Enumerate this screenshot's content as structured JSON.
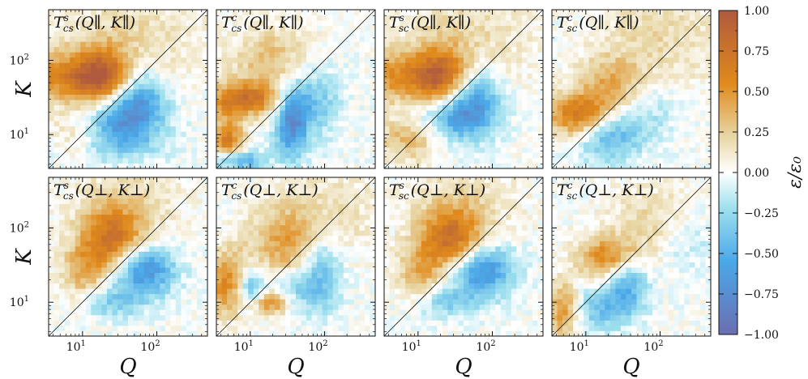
{
  "chart_data": {
    "type": "heatmap",
    "layout": "2x4 grid of panels with shared colorbar on the right",
    "x_axis": {
      "label": "Q",
      "scale": "log",
      "range": [
        3.5,
        480
      ],
      "major_ticks": [
        10,
        100
      ],
      "tick_labels": [
        "10",
        "10"
      ],
      "tick_exponents": [
        "1",
        "2"
      ]
    },
    "y_axis": {
      "label": "K",
      "scale": "log",
      "range": [
        3.5,
        480
      ],
      "major_ticks": [
        10,
        100
      ],
      "tick_labels": [
        "10",
        "10"
      ],
      "tick_exponents": [
        "1",
        "2"
      ]
    },
    "diagonal_line": "K = Q",
    "colorbar": {
      "label": "ε/ε₀",
      "range": [
        -1.0,
        1.0
      ],
      "ticks": [
        "1.00",
        "0.75",
        "0.50",
        "0.25",
        "0.00",
        "−0.25",
        "−0.50",
        "−0.75",
        "−1.00"
      ],
      "colors": {
        "neg_end": "#6b6eb0",
        "neg_mid": "#4aa8e8",
        "neg_light": "#9fe0ee",
        "zero": "#ffffff",
        "pos_light": "#e8d7a6",
        "pos_mid": "#e08a1c",
        "pos_end": "#b05a3e"
      }
    },
    "panels": [
      {
        "id": "p1",
        "row": 0,
        "col": 0,
        "title_main": "T",
        "title_sup": "s",
        "title_sub": "cs",
        "title_args": "(Q∥, K∥)",
        "blobs": [
          {
            "q": 6,
            "k": 60,
            "amp": 0.55,
            "sq": 0.6,
            "sk": 0.25
          },
          {
            "q": 18,
            "k": 55,
            "amp": 0.65,
            "sq": 0.25,
            "sk": 0.3
          },
          {
            "q": 45,
            "k": 200,
            "amp": 0.2,
            "sq": 0.6,
            "sk": 0.5
          },
          {
            "q": 8,
            "k": 9,
            "amp": 0.45,
            "sq": 0.3,
            "sk": 0.2
          },
          {
            "q": 30,
            "k": 18,
            "amp": -0.6,
            "sq": 0.35,
            "sk": 0.25
          },
          {
            "q": 60,
            "k": 35,
            "amp": -0.5,
            "sq": 0.25,
            "sk": 0.3
          },
          {
            "q": 15,
            "k": 8,
            "amp": -0.35,
            "sq": 0.6,
            "sk": 0.2
          }
        ]
      },
      {
        "id": "p2",
        "row": 0,
        "col": 1,
        "title_main": "T",
        "title_sup": "c",
        "title_sub": "cs",
        "title_args": "(Q∥, K∥)",
        "blobs": [
          {
            "q": 8,
            "k": 30,
            "amp": 0.7,
            "sq": 0.35,
            "sk": 0.15
          },
          {
            "q": 5,
            "k": 8,
            "amp": 0.65,
            "sq": 0.15,
            "sk": 0.25
          },
          {
            "q": 20,
            "k": 90,
            "amp": 0.35,
            "sq": 0.4,
            "sk": 0.35
          },
          {
            "q": 35,
            "k": 15,
            "amp": -0.7,
            "sq": 0.15,
            "sk": 0.35
          },
          {
            "q": 70,
            "k": 30,
            "amp": -0.4,
            "sq": 0.25,
            "sk": 0.35
          },
          {
            "q": 6,
            "k": 4.5,
            "amp": -0.7,
            "sq": 0.25,
            "sk": 0.1
          }
        ]
      },
      {
        "id": "p3",
        "row": 0,
        "col": 2,
        "title_main": "T",
        "title_sup": "s",
        "title_sub": "sc",
        "title_args": "(Q∥, K∥)",
        "blobs": [
          {
            "q": 6,
            "k": 60,
            "amp": 0.5,
            "sq": 0.6,
            "sk": 0.25
          },
          {
            "q": 20,
            "k": 55,
            "amp": 0.6,
            "sq": 0.25,
            "sk": 0.3
          },
          {
            "q": 45,
            "k": 200,
            "amp": 0.2,
            "sq": 0.6,
            "sk": 0.5
          },
          {
            "q": 8,
            "k": 9,
            "amp": 0.4,
            "sq": 0.3,
            "sk": 0.2
          },
          {
            "q": 30,
            "k": 18,
            "amp": -0.6,
            "sq": 0.35,
            "sk": 0.25
          },
          {
            "q": 60,
            "k": 35,
            "amp": -0.5,
            "sq": 0.25,
            "sk": 0.3
          }
        ]
      },
      {
        "id": "p4",
        "row": 0,
        "col": 3,
        "title_main": "T",
        "title_sup": "c",
        "title_sub": "sc",
        "title_args": "(Q∥, K∥)",
        "blobs": [
          {
            "q": 8,
            "k": 18,
            "amp": 0.7,
            "sq": 0.3,
            "sk": 0.2
          },
          {
            "q": 25,
            "k": 40,
            "amp": 0.45,
            "sq": 0.35,
            "sk": 0.3
          },
          {
            "q": 100,
            "k": 200,
            "amp": 0.2,
            "sq": 0.6,
            "sk": 0.5
          },
          {
            "q": 20,
            "k": 10,
            "amp": -0.5,
            "sq": 0.3,
            "sk": 0.25
          },
          {
            "q": 60,
            "k": 25,
            "amp": -0.3,
            "sq": 0.3,
            "sk": 0.3
          }
        ]
      },
      {
        "id": "p5",
        "row": 1,
        "col": 0,
        "title_main": "T",
        "title_sup": "s",
        "title_sub": "cs",
        "title_args": "(Q⊥, K⊥)",
        "blobs": [
          {
            "q": 25,
            "k": 65,
            "amp": 0.75,
            "sq": 0.3,
            "sk": 0.3
          },
          {
            "q": 10,
            "k": 25,
            "amp": 0.35,
            "sq": 0.2,
            "sk": 0.25
          },
          {
            "q": 40,
            "k": 200,
            "amp": 0.2,
            "sq": 0.5,
            "sk": 0.4
          },
          {
            "q": 65,
            "k": 28,
            "amp": -0.75,
            "sq": 0.3,
            "sk": 0.25
          },
          {
            "q": 25,
            "k": 10,
            "amp": -0.3,
            "sq": 0.3,
            "sk": 0.15
          }
        ]
      },
      {
        "id": "p6",
        "row": 1,
        "col": 1,
        "title_main": "T",
        "title_sup": "c",
        "title_sub": "cs",
        "title_args": "(Q⊥, K⊥)",
        "blobs": [
          {
            "q": 5,
            "k": 18,
            "amp": 0.6,
            "sq": 0.2,
            "sk": 0.3
          },
          {
            "q": 18,
            "k": 10,
            "amp": 0.6,
            "sq": 0.2,
            "sk": 0.12
          },
          {
            "q": 30,
            "k": 60,
            "amp": 0.4,
            "sq": 0.35,
            "sk": 0.35
          },
          {
            "q": 100,
            "k": 150,
            "amp": 0.2,
            "sq": 0.5,
            "sk": 0.4
          },
          {
            "q": 10,
            "k": 15,
            "amp": -0.55,
            "sq": 0.15,
            "sk": 0.2
          },
          {
            "q": 90,
            "k": 30,
            "amp": -0.4,
            "sq": 0.2,
            "sk": 0.4
          },
          {
            "q": 40,
            "k": 15,
            "amp": -0.3,
            "sq": 0.3,
            "sk": 0.2
          }
        ]
      },
      {
        "id": "p7",
        "row": 1,
        "col": 2,
        "title_main": "T",
        "title_sup": "s",
        "title_sub": "sc",
        "title_args": "(Q⊥, K⊥)",
        "blobs": [
          {
            "q": 28,
            "k": 65,
            "amp": 0.75,
            "sq": 0.3,
            "sk": 0.3
          },
          {
            "q": 10,
            "k": 25,
            "amp": 0.35,
            "sq": 0.2,
            "sk": 0.25
          },
          {
            "q": 40,
            "k": 200,
            "amp": 0.2,
            "sq": 0.5,
            "sk": 0.4
          },
          {
            "q": 70,
            "k": 28,
            "amp": -0.75,
            "sq": 0.3,
            "sk": 0.25
          },
          {
            "q": 25,
            "k": 10,
            "amp": -0.3,
            "sq": 0.3,
            "sk": 0.15
          }
        ]
      },
      {
        "id": "p8",
        "row": 1,
        "col": 3,
        "title_main": "T",
        "title_sup": "c",
        "title_sub": "sc",
        "title_args": "(Q⊥, K⊥)",
        "blobs": [
          {
            "q": 22,
            "k": 40,
            "amp": 0.65,
            "sq": 0.3,
            "sk": 0.2
          },
          {
            "q": 5,
            "k": 8,
            "amp": 0.55,
            "sq": 0.15,
            "sk": 0.25
          },
          {
            "q": 80,
            "k": 120,
            "amp": 0.25,
            "sq": 0.4,
            "sk": 0.35
          },
          {
            "q": 35,
            "k": 20,
            "amp": -0.55,
            "sq": 0.2,
            "sk": 0.3
          },
          {
            "q": 15,
            "k": 8,
            "amp": -0.35,
            "sq": 0.3,
            "sk": 0.2
          },
          {
            "q": 200,
            "k": 70,
            "amp": -0.2,
            "sq": 0.3,
            "sk": 0.3
          }
        ]
      }
    ]
  }
}
